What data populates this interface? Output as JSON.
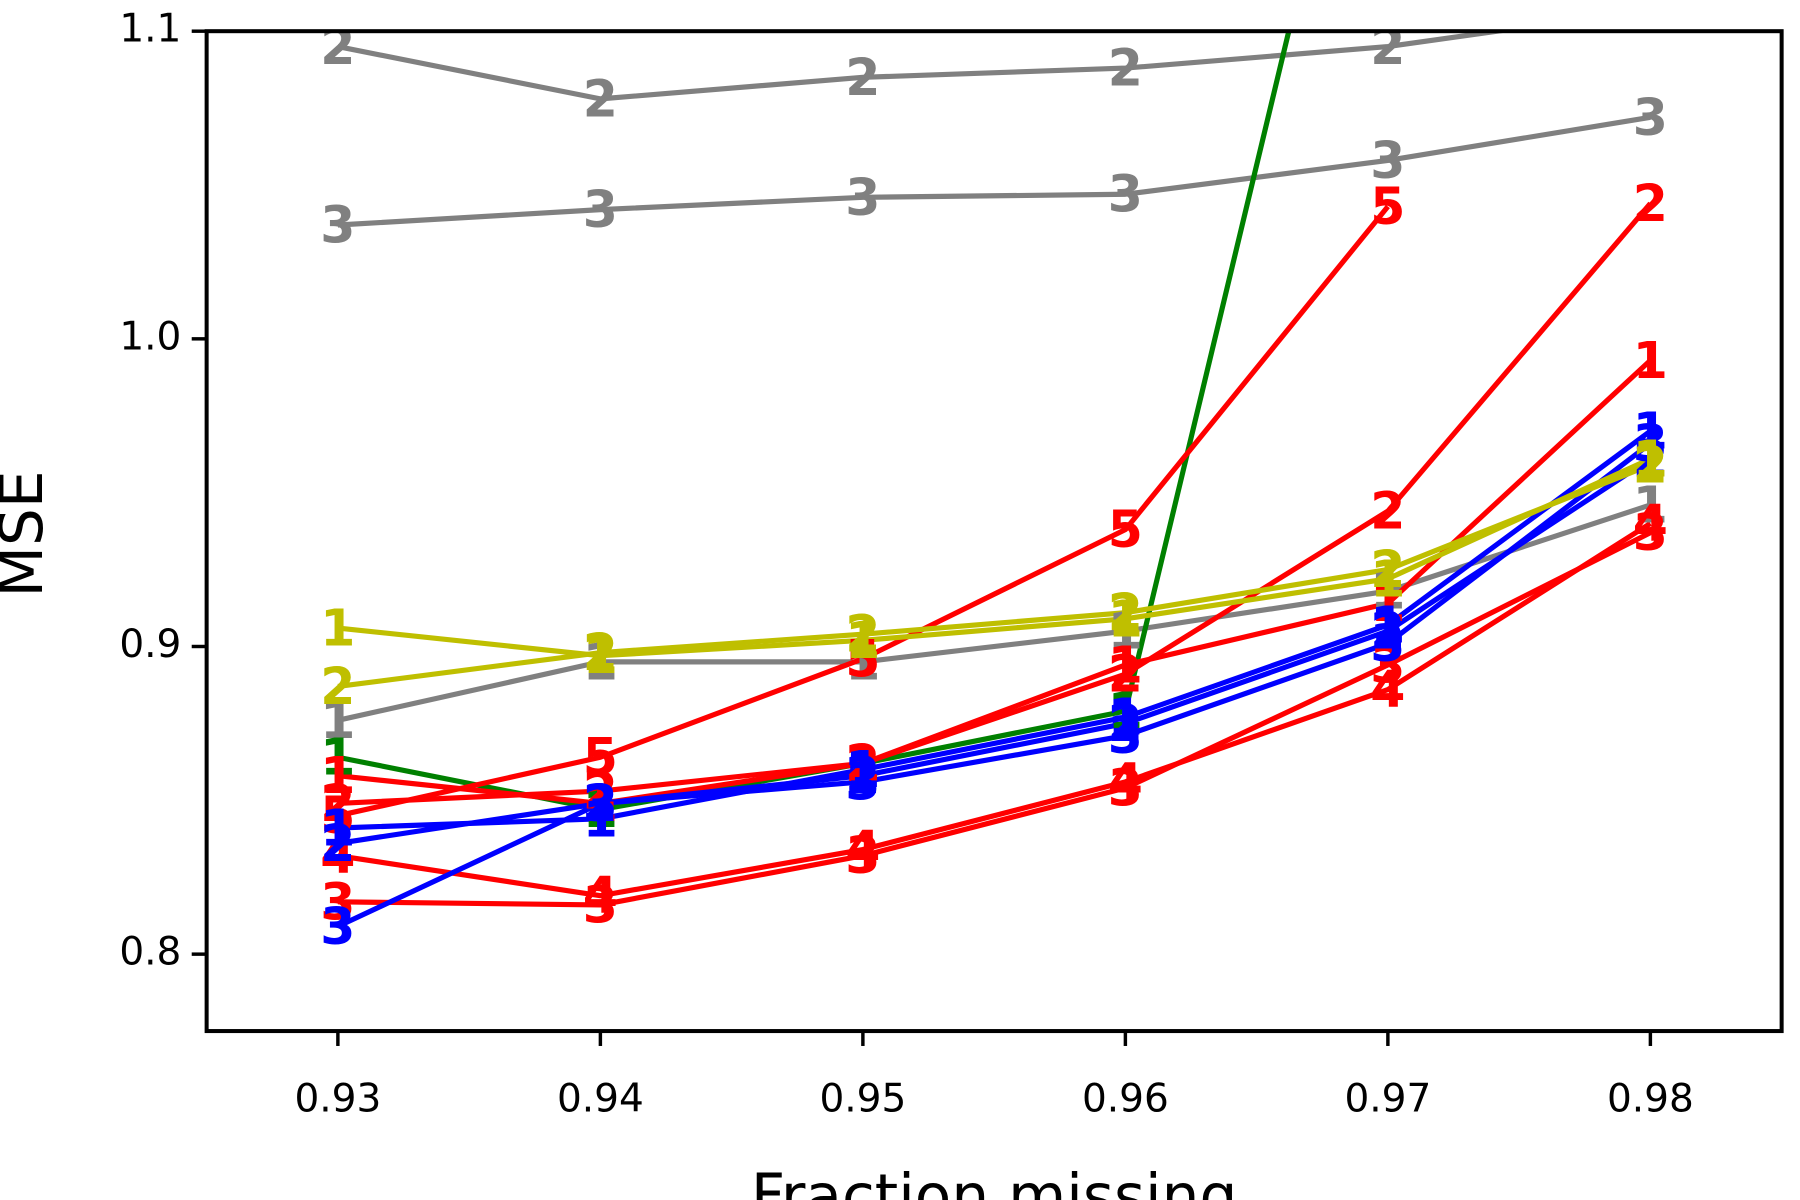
{
  "chart_data": {
    "type": "line",
    "x_label": "Fraction missing",
    "y_label": "MSE",
    "x": [
      0.93,
      0.94,
      0.95,
      0.96,
      0.97,
      0.98
    ],
    "xlim": [
      0.925,
      0.985
    ],
    "ylim": [
      0.775,
      1.1
    ],
    "xticks": [
      0.93,
      0.94,
      0.95,
      0.96,
      0.97,
      0.98
    ],
    "yticks": [
      0.8,
      0.9,
      {
        "value": 1,
        "label": "1.0"
      },
      1.1
    ],
    "series": [
      {
        "marker": "2",
        "color": "#808080",
        "values": [
          1.095,
          1.078,
          1.085,
          1.088,
          1.095,
          1.107
        ]
      },
      {
        "marker": "3",
        "color": "#808080",
        "values": [
          1.037,
          1.042,
          1.046,
          1.047,
          1.058,
          1.072
        ]
      },
      {
        "marker": "1",
        "color": "#808080",
        "values": [
          0.876,
          0.895,
          0.895,
          0.905,
          0.918,
          0.946
        ]
      },
      {
        "marker": "1",
        "color": "#008000",
        "values": [
          0.864,
          0.847,
          0.862,
          0.879,
          1.234,
          null
        ]
      },
      {
        "marker": "5",
        "color": "#ff0000",
        "values": [
          0.845,
          0.864,
          0.896,
          0.938,
          1.043,
          null
        ]
      },
      {
        "marker": "2",
        "color": "#ff0000",
        "values": [
          0.849,
          0.853,
          0.862,
          0.891,
          0.944,
          1.044
        ]
      },
      {
        "marker": "1",
        "color": "#ff0000",
        "values": [
          0.858,
          0.849,
          0.862,
          0.894,
          0.914,
          0.993
        ]
      },
      {
        "marker": "3",
        "color": "#ff0000",
        "values": [
          0.817,
          0.816,
          0.832,
          0.854,
          0.894,
          0.937
        ]
      },
      {
        "marker": "4",
        "color": "#ff0000",
        "values": [
          0.832,
          0.819,
          0.834,
          0.856,
          0.886,
          0.94
        ]
      },
      {
        "marker": "3",
        "color": "#0000ff",
        "values": [
          0.809,
          0.849,
          0.856,
          0.871,
          0.901,
          0.966
        ]
      },
      {
        "marker": "1",
        "color": "#0000ff",
        "values": [
          0.841,
          0.844,
          0.86,
          0.877,
          0.907,
          0.97
        ]
      },
      {
        "marker": "2",
        "color": "#0000ff",
        "values": [
          0.836,
          0.849,
          0.858,
          0.875,
          0.905,
          0.961
        ]
      },
      {
        "marker": "1",
        "color": "#bfbf00",
        "values": [
          0.906,
          0.897,
          0.902,
          0.909,
          0.922,
          0.961
        ]
      },
      {
        "marker": "2",
        "color": "#bfbf00",
        "values": [
          0.887,
          0.898,
          0.904,
          0.911,
          0.925,
          0.959
        ]
      }
    ]
  }
}
